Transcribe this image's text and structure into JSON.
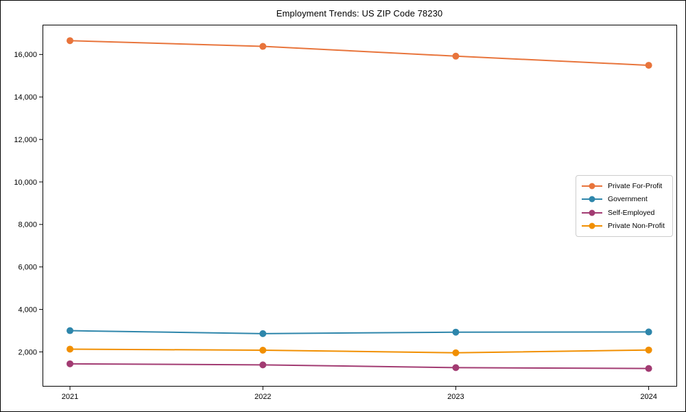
{
  "chart_data": {
    "type": "line",
    "title": "Employment Trends: US ZIP Code 78230",
    "categories": [
      "2021",
      "2022",
      "2023",
      "2024"
    ],
    "series": [
      {
        "name": "Private For-Profit",
        "color": "#E8743B",
        "values": [
          16650,
          16380,
          15920,
          15490
        ]
      },
      {
        "name": "Government",
        "color": "#2E86AB",
        "values": [
          3000,
          2860,
          2930,
          2940
        ]
      },
      {
        "name": "Self-Employed",
        "color": "#A23B72",
        "values": [
          1440,
          1390,
          1260,
          1220
        ]
      },
      {
        "name": "Private Non-Profit",
        "color": "#F18F01",
        "values": [
          2130,
          2080,
          1960,
          2090
        ]
      }
    ],
    "y_ticks": [
      {
        "value": 2000,
        "label": "2,000"
      },
      {
        "value": 4000,
        "label": "4,000"
      },
      {
        "value": 6000,
        "label": "6,000"
      },
      {
        "value": 8000,
        "label": "8,000"
      },
      {
        "value": 10000,
        "label": "10,000"
      },
      {
        "value": 12000,
        "label": "12,000"
      },
      {
        "value": 14000,
        "label": "14,000"
      },
      {
        "value": 16000,
        "label": "16,000"
      }
    ],
    "ylim": [
      400,
      17400
    ],
    "xlabel": "",
    "ylabel": "",
    "grid": false,
    "legend_position": "center right",
    "marker": "circle",
    "axis_color": "#000000",
    "tick_label_color": "#000000"
  }
}
